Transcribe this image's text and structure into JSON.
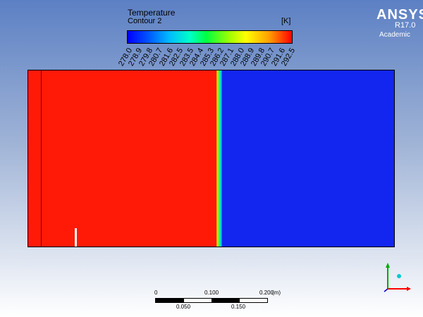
{
  "legend": {
    "title": "Temperature",
    "subtitle": "Contour 2",
    "unit": "[K]",
    "ticks": [
      "278.0",
      "278.9",
      "279.8",
      "280.7",
      "281.6",
      "282.5",
      "283.5",
      "284.4",
      "285.3",
      "286.2",
      "287.1",
      "288.0",
      "288.9",
      "289.8",
      "290.7",
      "291.6",
      "292.5"
    ]
  },
  "branding": {
    "logo": "ANSYS",
    "version": "R17.0",
    "edition": "Academic"
  },
  "colors": {
    "hot": "#ff1a08",
    "cold": "#1226ef",
    "background_top": "#5c80c4"
  },
  "scale": {
    "top_labels": [
      "0",
      "0.100",
      "0.200",
      "(m)"
    ],
    "bottom_labels": [
      "0.050",
      "0.150"
    ]
  },
  "axes": {
    "x_color": "#ff0000",
    "y_color": "#00aa00",
    "z_color": "#00cccc"
  }
}
